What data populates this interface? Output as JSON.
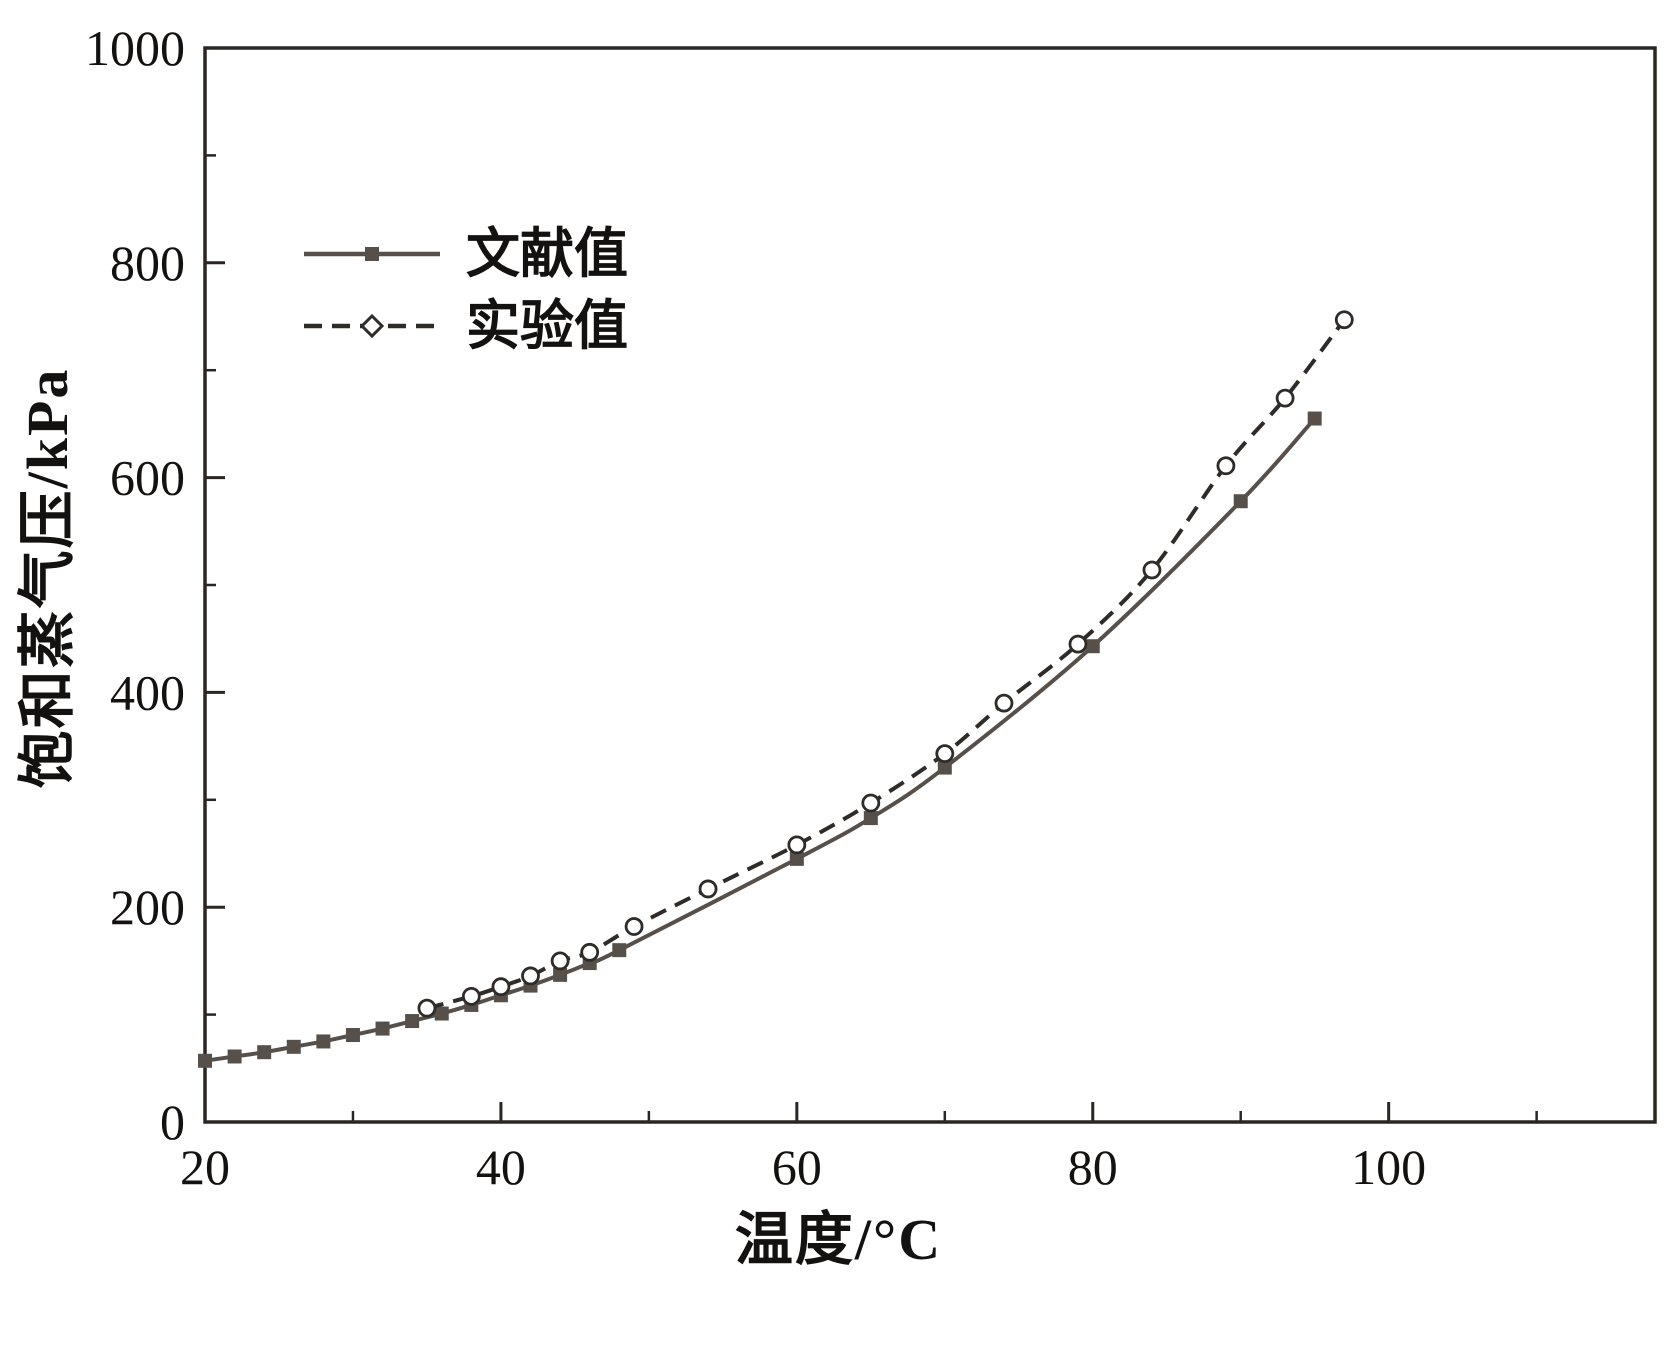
{
  "chart_data": {
    "type": "line",
    "title": "",
    "xlabel": "温度/°C",
    "ylabel": "饱和蒸气压/kPa",
    "xlim": [
      20,
      118
    ],
    "ylim": [
      0,
      1000
    ],
    "xticks": [
      20,
      40,
      60,
      80,
      100
    ],
    "xticks_minor": [
      30,
      50,
      70,
      90,
      110
    ],
    "yticks": [
      0,
      200,
      400,
      600,
      800,
      1000
    ],
    "yticks_minor": [
      100,
      300,
      500,
      700,
      900
    ],
    "grid": false,
    "legend_position": "upper-left-inside",
    "ink_color": "#2a2623",
    "series": [
      {
        "name": "文献值",
        "line_style": "solid",
        "marker": "filled-square",
        "color": "#57504a",
        "points": [
          [
            20,
            57
          ],
          [
            22,
            61
          ],
          [
            24,
            65
          ],
          [
            26,
            70
          ],
          [
            28,
            75
          ],
          [
            30,
            81
          ],
          [
            32,
            87
          ],
          [
            34,
            94
          ],
          [
            36,
            101
          ],
          [
            38,
            109
          ],
          [
            40,
            118
          ],
          [
            42,
            127
          ],
          [
            44,
            137
          ],
          [
            46,
            148
          ],
          [
            48,
            160
          ],
          [
            60,
            245
          ],
          [
            65,
            283
          ],
          [
            70,
            330
          ],
          [
            80,
            443
          ],
          [
            90,
            578
          ],
          [
            95,
            655
          ]
        ]
      },
      {
        "name": "实验值",
        "line_style": "dashed",
        "marker": "open-circle",
        "color": "#2f2b28",
        "points": [
          [
            35,
            106
          ],
          [
            38,
            117
          ],
          [
            40,
            126
          ],
          [
            42,
            136
          ],
          [
            44,
            150
          ],
          [
            46,
            158
          ],
          [
            49,
            182
          ],
          [
            54,
            217
          ],
          [
            60,
            258
          ],
          [
            65,
            297
          ],
          [
            70,
            343
          ],
          [
            74,
            390
          ],
          [
            79,
            445
          ],
          [
            84,
            514
          ],
          [
            89,
            611
          ],
          [
            93,
            674
          ],
          [
            97,
            747
          ]
        ]
      }
    ]
  }
}
